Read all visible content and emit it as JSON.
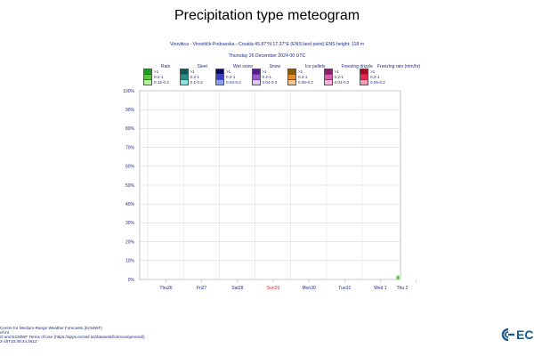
{
  "title": "Precipitation type meteogram",
  "subtitle_1": "Virovitica - Virovitičk-Podravska - Croatia 45.87°N 17.37°E (ENS land point) ENS height: 118 m",
  "subtitle_2": "Thursday 26 December 2024 00 UTC",
  "legend": {
    "groups": [
      {
        "name": "Rain",
        "labels": [
          ">1",
          "0.2-1",
          "0.12-0.2"
        ],
        "colors": [
          "#1e9a1e",
          "#58c83c",
          "#b4f0a0"
        ]
      },
      {
        "name": "Sleet",
        "labels": [
          ">1",
          "0.2-1",
          "0.1-0.2"
        ],
        "colors": [
          "#0f5a55",
          "#2a8f8a",
          "#90e0d8"
        ]
      },
      {
        "name": "Wet snow",
        "labels": [
          ">1",
          "0.2-1",
          "0.04-0.2"
        ],
        "colors": [
          "#0a0a5a",
          "#3c3cc8",
          "#8ca0f0"
        ]
      },
      {
        "name": "Snow",
        "labels": [
          ">1",
          "0.2-1",
          "0.04-0.2"
        ],
        "colors": [
          "#5a1e8c",
          "#9a5ad2",
          "#d8c8f0"
        ]
      },
      {
        "name": "Ice pellets",
        "labels": [
          ">1",
          "0.2-1",
          "0.05-0.2"
        ],
        "colors": [
          "#8c5a0a",
          "#e08c28",
          "#f0c896"
        ]
      },
      {
        "name": "Freezing drizzle",
        "labels": [
          ">1",
          "0.2-1",
          "0.03-0.2"
        ],
        "colors": [
          "#8c1e6e",
          "#e05ab4",
          "#f5b4dc"
        ]
      },
      {
        "name": "Freezing rain",
        "labels": [
          ">1",
          "0.2-1",
          "0.05-0.2"
        ],
        "colors": [
          "#a00a28",
          "#e62850",
          "#f0a0b4"
        ]
      }
    ],
    "unit_label": "(mm/hr)"
  },
  "chart_data": {
    "type": "bar",
    "ylabel": "",
    "xlabel": "",
    "ylim": [
      0,
      100
    ],
    "y_ticks": [
      "0%",
      "10%",
      "20%",
      "30%",
      "40%",
      "50%",
      "60%",
      "70%",
      "80%",
      "90%",
      "100%"
    ],
    "x_ticks": [
      "Thu26",
      "Fri27",
      "Sat28",
      "Sun29",
      "Mon30",
      "Tue31",
      "Wed 1",
      "Thu 2"
    ],
    "x_tick_colors": [
      "#1f2a8a",
      "#1f2a8a",
      "#1f2a8a",
      "#e0282a",
      "#1f2a8a",
      "#1f2a8a",
      "#1f2a8a",
      "#1f2a8a"
    ],
    "grid": true,
    "series": [
      {
        "name": "Rain",
        "values_by_day": [
          0,
          0,
          0,
          0,
          0,
          0,
          2,
          0
        ],
        "color": "#58c83c"
      }
    ]
  },
  "footer": {
    "line1": "Centre for Medium-Range Weather Forecasts (ECMWF)",
    "line2": "ef.int",
    "line3": "O and ECMWF Terms of Use (https://apps.ecmwf.int/datasets/licences/general/)",
    "line4": "2-19T10:49:44.361Z"
  },
  "logo_text": "EC"
}
